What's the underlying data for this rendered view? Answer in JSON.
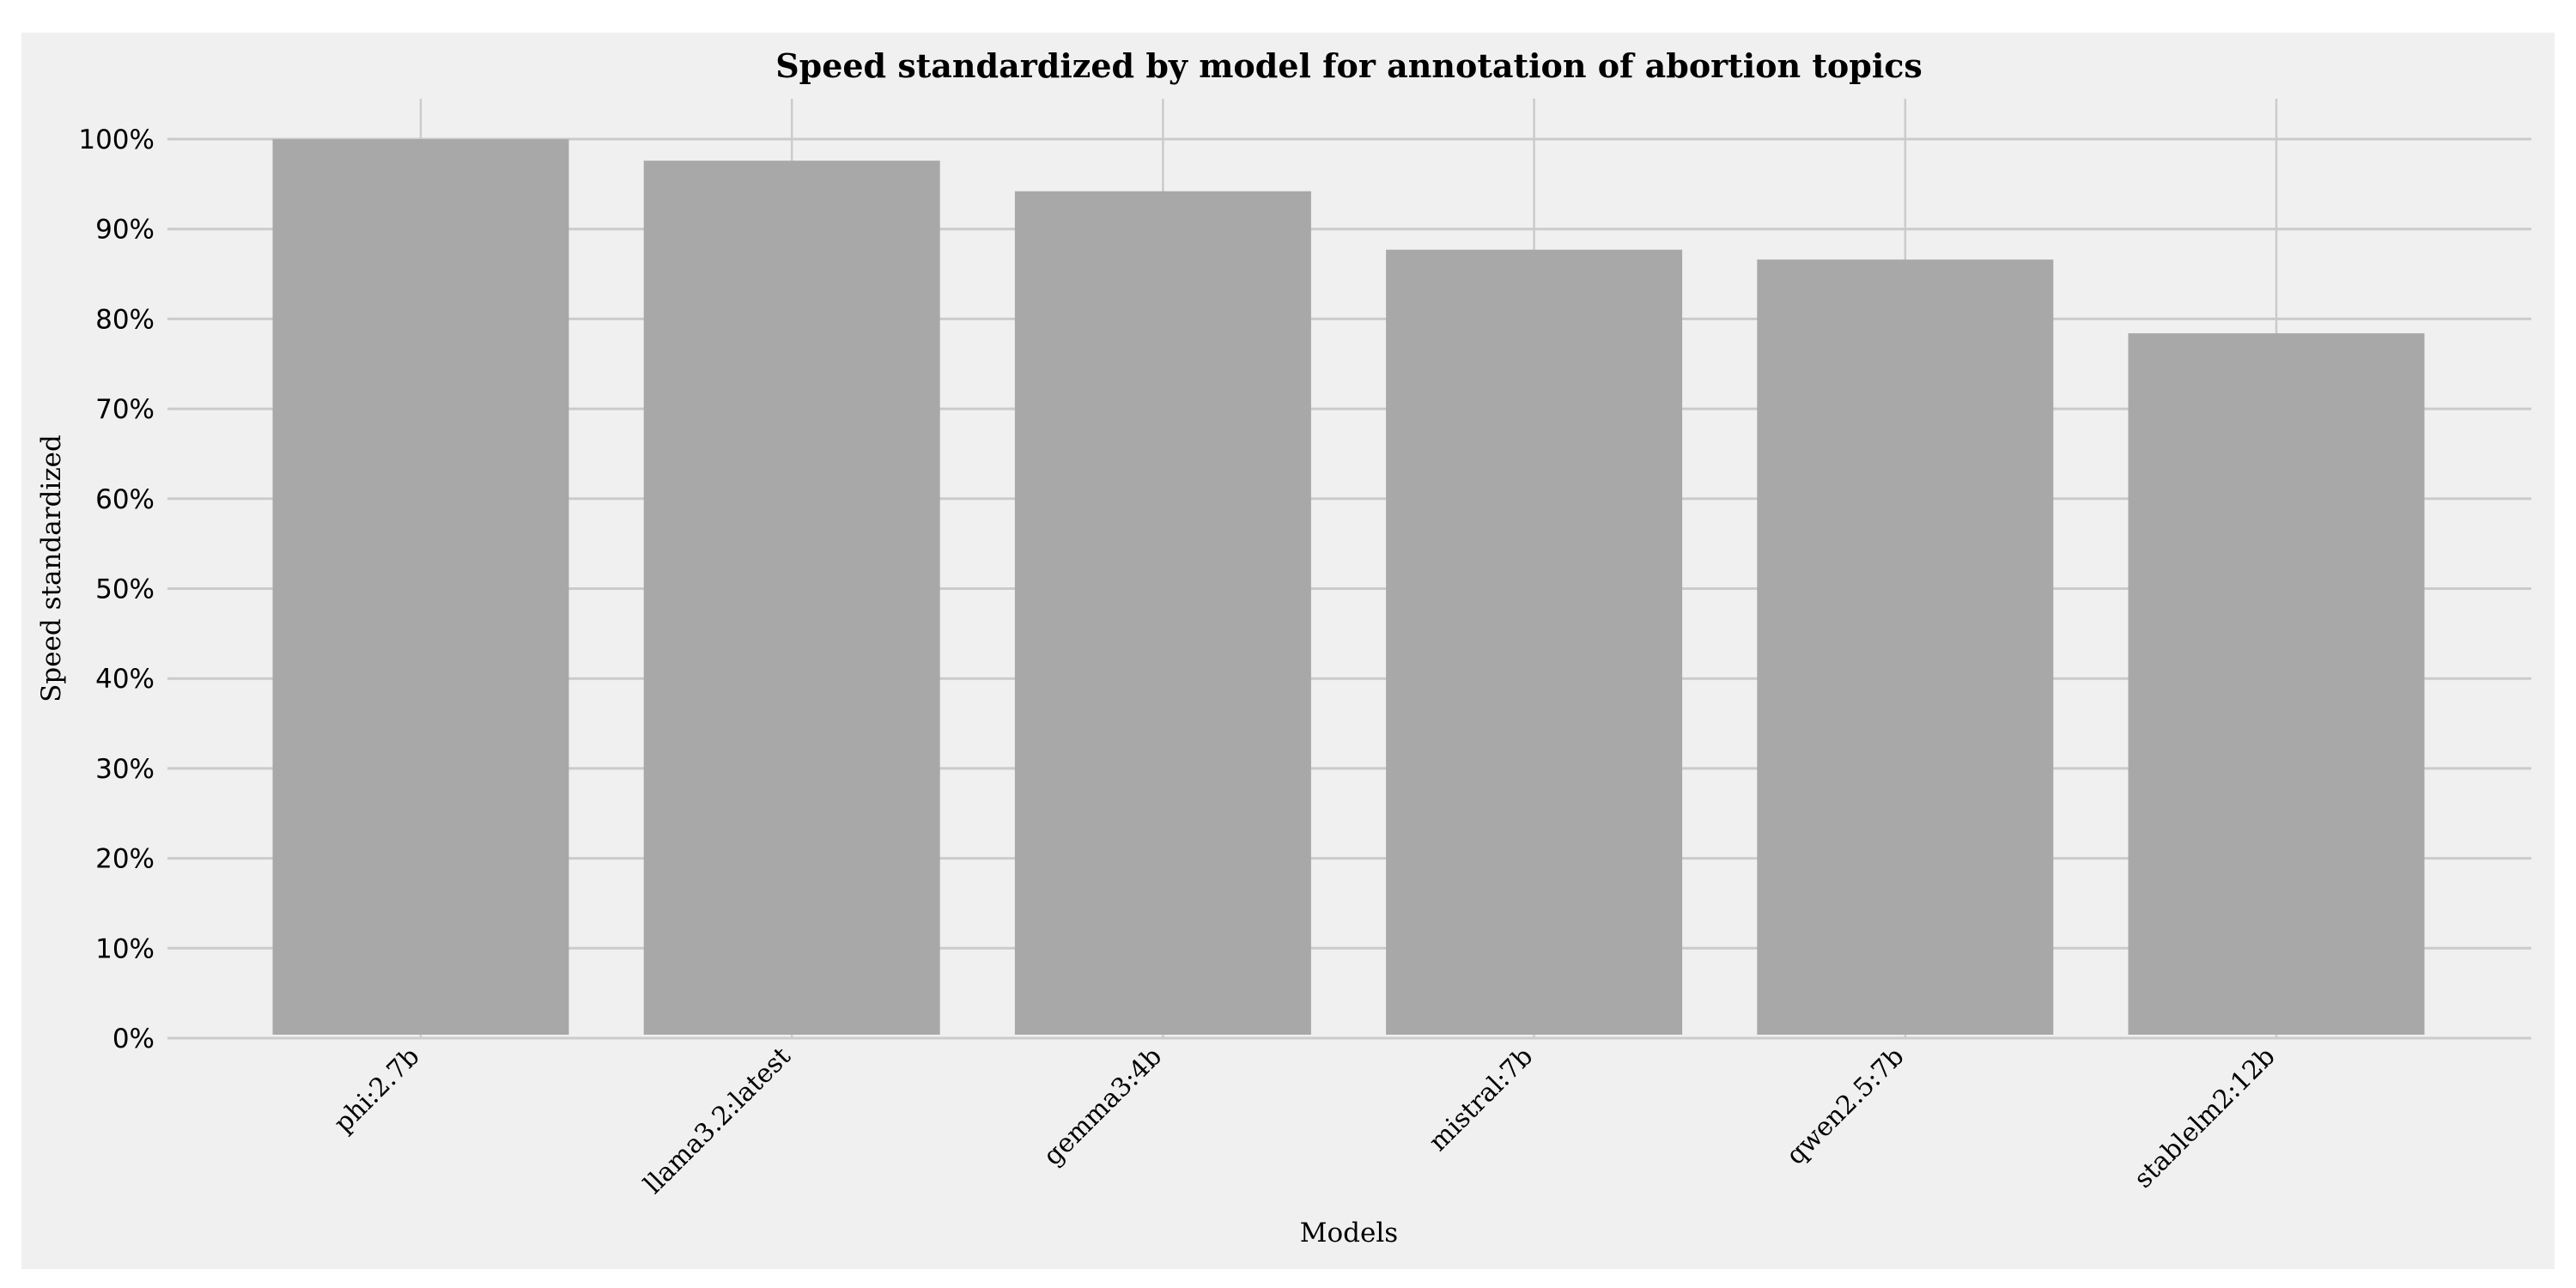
{
  "chart_data": {
    "type": "bar",
    "title": "Speed standardized by model for annotation of abortion topics",
    "xlabel": "Models",
    "ylabel": "Speed standardized",
    "categories": [
      "phi:2.7b",
      "llama3.2:latest",
      "gemma3:4b",
      "mistral:7b",
      "qwen2.5:7b",
      "stablelm2:12b"
    ],
    "values": [
      100,
      97.6,
      94.2,
      87.7,
      86.6,
      78.4
    ],
    "ylim": [
      0,
      100
    ],
    "yticks": [
      0,
      10,
      20,
      30,
      40,
      50,
      60,
      70,
      80,
      90,
      100
    ],
    "ytick_format": "%",
    "grid": true,
    "bar_color": "#a8a8a8",
    "background_color": "#f0f0f0",
    "grid_color": "#cbcbcb"
  }
}
